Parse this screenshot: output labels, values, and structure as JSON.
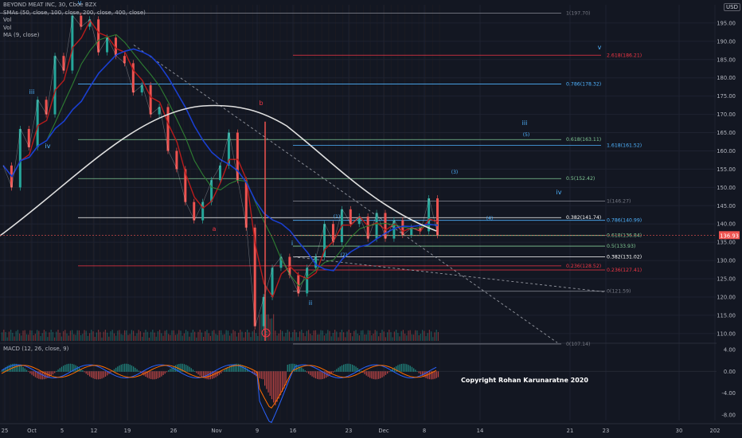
{
  "legend": {
    "title": "BEYOND MEAT INC, 30, Cboe BZX",
    "smas": "SMAs (50, close, 100, close, 200, close, 400, close)",
    "vol1": "Vol",
    "vol2": "Vol",
    "ma": "MA (9, close)"
  },
  "macd_legend": "MACD (12, 26, close, 9)",
  "currency": "USD",
  "copyright": "Copyright Rohan Karunaratne 2020",
  "colors": {
    "background": "#131722",
    "grid": "#1e2230",
    "text": "#b2b5be",
    "candle_up": "#26a69a",
    "candle_down": "#ef5350",
    "sma50": "#b71c1c",
    "sma100": "#2e7d32",
    "sma200": "#1a3fd0",
    "sma400": "#e0e0e0",
    "fib_lines": "#81c995",
    "fib_blue": "#4fb3ff",
    "fib_red": "#f23645",
    "trendline": "#9598a1"
  },
  "chart_data": {
    "type": "line",
    "symbol": "BEYOND MEAT INC",
    "interval": "30",
    "exchange": "Cboe BZX",
    "currency": "USD",
    "last_price": 136.93,
    "ylim": [
      108,
      200
    ],
    "y_ticks": [
      110.0,
      115.0,
      120.0,
      125.0,
      130.0,
      135.0,
      140.0,
      145.0,
      150.0,
      155.0,
      160.0,
      165.0,
      170.0,
      175.0,
      180.0,
      185.0,
      190.0,
      195.0
    ],
    "x_ticks": [
      "25",
      "Oct",
      "5",
      "12",
      "19",
      "26",
      "Nov",
      "9",
      "16",
      "23",
      "Dec",
      "8",
      "14",
      "21",
      "23",
      "30",
      "202"
    ],
    "price_path": [
      {
        "t": "25",
        "v": 156
      },
      {
        "t": "",
        "v": 150
      },
      {
        "t": "",
        "v": 166
      },
      {
        "t": "",
        "v": 161
      },
      {
        "t": "",
        "v": 174
      },
      {
        "t": "",
        "v": 170
      },
      {
        "t": "",
        "v": 186
      },
      {
        "t": "",
        "v": 182
      },
      {
        "t": "",
        "v": 197
      },
      {
        "t": "",
        "v": 194
      },
      {
        "t": "12",
        "v": 196
      },
      {
        "t": "",
        "v": 187
      },
      {
        "t": "",
        "v": 191
      },
      {
        "t": "",
        "v": 186
      },
      {
        "t": "19",
        "v": 184
      },
      {
        "t": "",
        "v": 176
      },
      {
        "t": "",
        "v": 178
      },
      {
        "t": "",
        "v": 170
      },
      {
        "t": "26",
        "v": 172
      },
      {
        "t": "",
        "v": 160
      },
      {
        "t": "",
        "v": 155
      },
      {
        "t": "",
        "v": 146
      },
      {
        "t": "Nov",
        "v": 141
      },
      {
        "t": "",
        "v": 146
      },
      {
        "t": "",
        "v": 152
      },
      {
        "t": "",
        "v": 156
      },
      {
        "t": "",
        "v": 165
      },
      {
        "t": "",
        "v": 152
      },
      {
        "t": "9",
        "v": 139
      },
      {
        "t": "",
        "v": 112
      },
      {
        "t": "",
        "v": 120
      },
      {
        "t": "",
        "v": 128
      },
      {
        "t": "",
        "v": 131
      },
      {
        "t": "16",
        "v": 126
      },
      {
        "t": "",
        "v": 121
      },
      {
        "t": "",
        "v": 128
      },
      {
        "t": "",
        "v": 131
      },
      {
        "t": "",
        "v": 140
      },
      {
        "t": "",
        "v": 135
      },
      {
        "t": "",
        "v": 144
      },
      {
        "t": "23",
        "v": 140
      },
      {
        "t": "",
        "v": 142
      },
      {
        "t": "",
        "v": 136
      },
      {
        "t": "",
        "v": 143
      },
      {
        "t": "Dec",
        "v": 136
      },
      {
        "t": "",
        "v": 141
      },
      {
        "t": "",
        "v": 137
      },
      {
        "t": "",
        "v": 139
      },
      {
        "t": "8",
        "v": 138
      },
      {
        "t": "",
        "v": 147
      },
      {
        "t": "",
        "v": 136.93
      }
    ],
    "fib_levels": [
      {
        "label": "1(197.70)",
        "value": 197.7,
        "color": "#787b86"
      },
      {
        "label": "2.618(186.21)",
        "value": 186.21,
        "color": "#f23645"
      },
      {
        "label": "0.786(178.32)",
        "value": 178.32,
        "color": "#4fb3ff"
      },
      {
        "label": "0.618(163.11)",
        "value": 163.11,
        "color": "#81c995"
      },
      {
        "label": "1.618(161.52)",
        "value": 161.52,
        "color": "#4fb3ff"
      },
      {
        "label": "0.5(152.42)",
        "value": 152.42,
        "color": "#81c995"
      },
      {
        "label": "1(146.27)",
        "value": 146.27,
        "color": "#787b86"
      },
      {
        "label": "0.382(141.74)",
        "value": 141.74,
        "color": "#ffffff"
      },
      {
        "label": "0.786(140.99)",
        "value": 140.99,
        "color": "#4fb3ff"
      },
      {
        "label": "0.618(136.84)",
        "value": 136.84,
        "color": "#81c995"
      },
      {
        "label": "0.5(133.93)",
        "value": 133.93,
        "color": "#81c995"
      },
      {
        "label": "0.382(131.02)",
        "value": 131.02,
        "color": "#ffffff"
      },
      {
        "label": "0.236(128.52)",
        "value": 128.52,
        "color": "#f23645"
      },
      {
        "label": "0.236(127.41)",
        "value": 127.41,
        "color": "#f23645"
      },
      {
        "label": "0(121.59)",
        "value": 121.59,
        "color": "#787b86"
      },
      {
        "label": "0(107.14)",
        "value": 107.14,
        "color": "#787b86"
      }
    ],
    "wave_labels": [
      {
        "text": "v",
        "color": "#4fb3ff"
      },
      {
        "text": "iii",
        "color": "#4fb3ff"
      },
      {
        "text": "iv",
        "color": "#4fb3ff"
      },
      {
        "text": "b",
        "color": "#f23645"
      },
      {
        "text": "a",
        "color": "#f23645"
      },
      {
        "text": "c",
        "color": "#f23645"
      },
      {
        "text": "i",
        "color": "#4fb3ff"
      },
      {
        "text": "ii",
        "color": "#4fb3ff"
      },
      {
        "text": "(1)",
        "color": "#4fb3ff"
      },
      {
        "text": "(2)",
        "color": "#4fb3ff"
      },
      {
        "text": "(3)",
        "color": "#4fb3ff"
      },
      {
        "text": "(4)",
        "color": "#4fb3ff"
      },
      {
        "text": "(5)",
        "color": "#4fb3ff"
      },
      {
        "text": "iii",
        "color": "#4fb3ff"
      },
      {
        "text": "iv",
        "color": "#4fb3ff"
      },
      {
        "text": "v",
        "color": "#4fb3ff"
      }
    ],
    "macd": {
      "name": "MACD (12, 26, close, 9)",
      "ylim": [
        -9,
        5
      ],
      "y_ticks": [
        4.0,
        0.0,
        -4.0,
        -8.0
      ]
    }
  }
}
